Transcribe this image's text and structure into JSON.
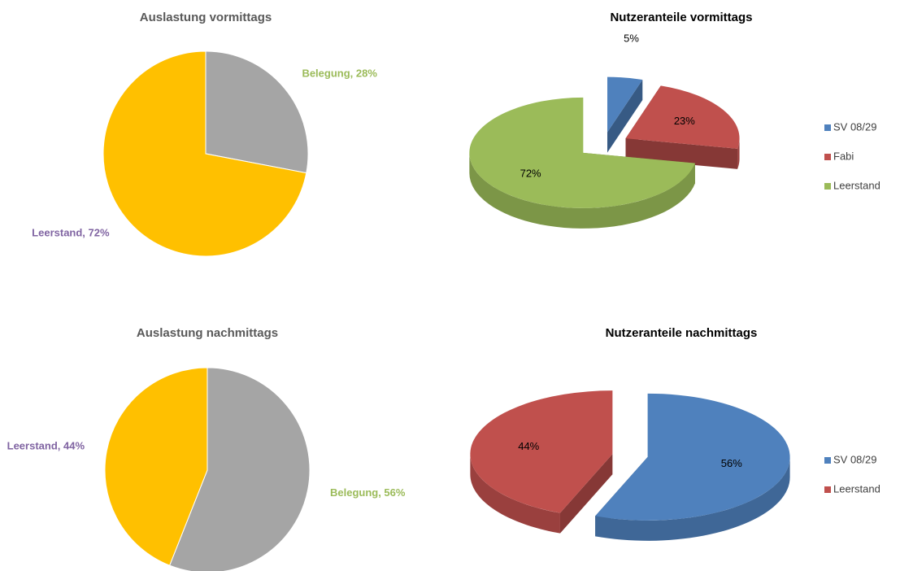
{
  "chart_data": [
    {
      "type": "pie",
      "style": "2d",
      "title": "Auslastung vormittags",
      "categories": [
        "Belegung",
        "Leerstand"
      ],
      "values": [
        28,
        72
      ],
      "value_labels": [
        "Belegung, 28%",
        "Leerstand, 72%"
      ],
      "colors": [
        "#a5a5a5",
        "#ffc000"
      ],
      "label_colors": [
        "#9bbb59",
        "#8064a2"
      ]
    },
    {
      "type": "pie",
      "style": "3d",
      "title": "Nutzeranteile vormittags",
      "categories": [
        "SV 08/29",
        "Fabi",
        "Leerstand"
      ],
      "values": [
        5,
        23,
        72
      ],
      "value_labels": [
        "5%",
        "23%",
        "72%"
      ],
      "colors": [
        "#4f81bd",
        "#c0504d",
        "#9bbb59"
      ],
      "legend": "right"
    },
    {
      "type": "pie",
      "style": "2d",
      "title": "Auslastung nachmittags",
      "categories": [
        "Belegung",
        "Leerstand"
      ],
      "values": [
        56,
        44
      ],
      "value_labels": [
        "Belegung, 56%",
        "Leerstand, 44%"
      ],
      "colors": [
        "#a5a5a5",
        "#ffc000"
      ],
      "label_colors": [
        "#9bbb59",
        "#8064a2"
      ]
    },
    {
      "type": "pie",
      "style": "3d",
      "title": "Nutzeranteile nachmittags",
      "categories": [
        "SV 08/29",
        "Leerstand"
      ],
      "values": [
        56,
        44
      ],
      "value_labels": [
        "56%",
        "44%"
      ],
      "colors": [
        "#4f81bd",
        "#c0504d"
      ],
      "legend": "right"
    }
  ]
}
